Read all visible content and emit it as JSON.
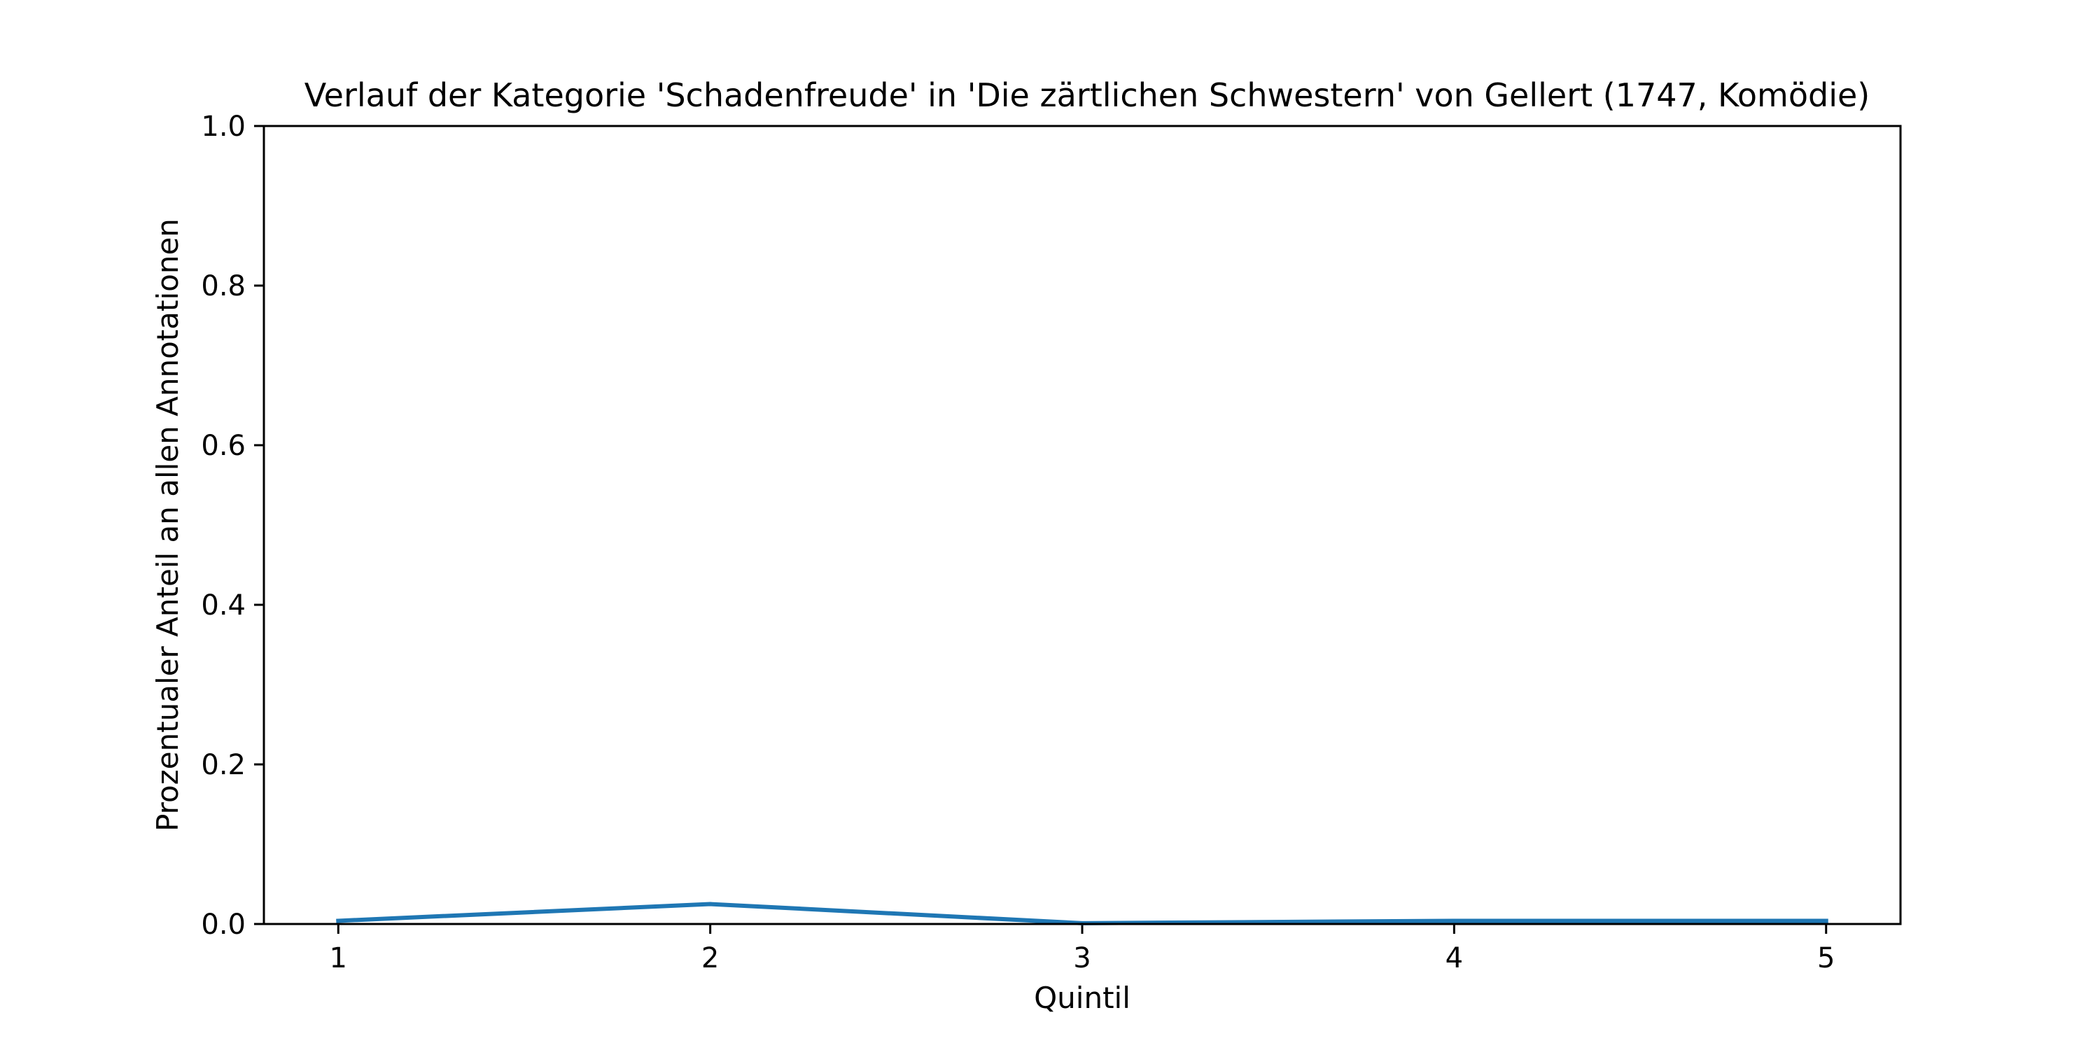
{
  "chart_data": {
    "type": "line",
    "title": "Verlauf der Kategorie 'Schadenfreude' in 'Die zärtlichen Schwestern' von Gellert (1747, Komödie)",
    "xlabel": "Quintil",
    "ylabel": "Prozentualer Anteil an allen Annotationen",
    "x": [
      1,
      2,
      3,
      4,
      5
    ],
    "series": [
      {
        "values": [
          0.004,
          0.025,
          0.001,
          0.004,
          0.004
        ],
        "color": "#1f77b4"
      }
    ],
    "xlim": [
      0.8,
      5.2
    ],
    "ylim": [
      0.0,
      1.0
    ],
    "xticks": [
      "1",
      "2",
      "3",
      "4",
      "5"
    ],
    "yticks": [
      "0.0",
      "0.2",
      "0.4",
      "0.6",
      "0.8",
      "1.0"
    ],
    "grid": false,
    "legend": "none"
  }
}
